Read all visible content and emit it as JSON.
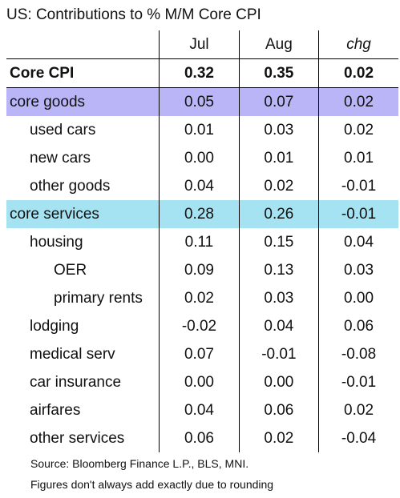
{
  "title": "US: Contributions to % M/M Core CPI",
  "columns": [
    "Jul",
    "Aug",
    "chg"
  ],
  "chart_data": {
    "type": "table",
    "title": "US: Contributions to % M/M Core CPI",
    "columns": [
      "Jul",
      "Aug",
      "chg"
    ],
    "rows": [
      {
        "label": "Core CPI",
        "level": 0,
        "style": "bold",
        "Jul": "0.32",
        "Aug": "0.35",
        "chg": "0.02"
      },
      {
        "label": "core goods",
        "level": 0,
        "style": "goods",
        "Jul": "0.05",
        "Aug": "0.07",
        "chg": "0.02"
      },
      {
        "label": "used cars",
        "level": 1,
        "Jul": "0.01",
        "Aug": "0.03",
        "chg": "0.02"
      },
      {
        "label": "new cars",
        "level": 1,
        "Jul": "0.00",
        "Aug": "0.01",
        "chg": "0.01"
      },
      {
        "label": "other goods",
        "level": 1,
        "Jul": "0.04",
        "Aug": "0.02",
        "chg": "-0.01"
      },
      {
        "label": "core services",
        "level": 0,
        "style": "services",
        "Jul": "0.28",
        "Aug": "0.26",
        "chg": "-0.01"
      },
      {
        "label": "housing",
        "level": 1,
        "Jul": "0.11",
        "Aug": "0.15",
        "chg": "0.04"
      },
      {
        "label": "OER",
        "level": 2,
        "Jul": "0.09",
        "Aug": "0.13",
        "chg": "0.03"
      },
      {
        "label": "primary rents",
        "level": 2,
        "Jul": "0.02",
        "Aug": "0.03",
        "chg": "0.00"
      },
      {
        "label": "lodging",
        "level": 1,
        "Jul": "-0.02",
        "Aug": "0.04",
        "chg": "0.06"
      },
      {
        "label": "medical serv",
        "level": 1,
        "Jul": "0.07",
        "Aug": "-0.01",
        "chg": "-0.08"
      },
      {
        "label": "car insurance",
        "level": 1,
        "Jul": "0.00",
        "Aug": "0.00",
        "chg": "-0.01"
      },
      {
        "label": "airfares",
        "level": 1,
        "Jul": "0.04",
        "Aug": "0.06",
        "chg": "0.02"
      },
      {
        "label": "other services",
        "level": 1,
        "Jul": "0.06",
        "Aug": "0.02",
        "chg": "-0.04"
      }
    ]
  },
  "colors": {
    "core_goods_highlight": "#b9b5f7",
    "core_services_highlight": "#a6e3f2"
  },
  "notes": {
    "source": "Source: Bloomberg Finance L.P., BLS, MNI.",
    "rounding": "Figures don't always add exactly due to rounding"
  }
}
